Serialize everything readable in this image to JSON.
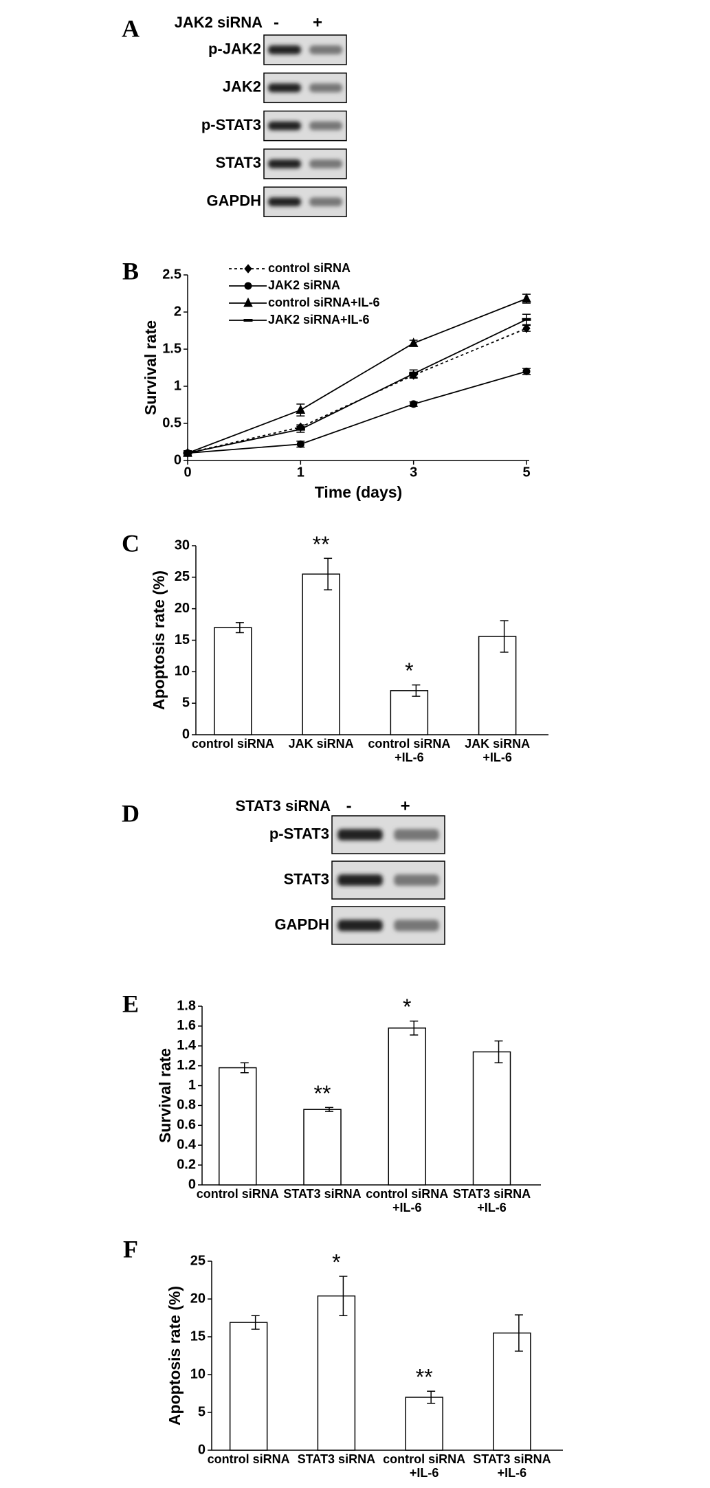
{
  "chart_data": [
    {
      "type": "blot",
      "panel": "A",
      "treatment": "JAK2 siRNA",
      "lanes": [
        "-",
        "+"
      ],
      "rows": [
        "p-JAK2",
        "JAK2",
        "p-STAT3",
        "STAT3",
        "GAPDH"
      ]
    },
    {
      "type": "line",
      "panel": "B",
      "xlabel": "Time (days)",
      "ylabel": "Survival rate",
      "categories": [
        "0",
        "1",
        "3",
        "5"
      ],
      "ylim": [
        0,
        2.5
      ],
      "yticks": [
        0,
        0.5,
        1,
        1.5,
        2,
        2.5
      ],
      "series": [
        {
          "name": "control siRNA",
          "color": "#000000",
          "linestyle": "dotted",
          "marker": "diamond",
          "values": [
            0.1,
            0.45,
            1.15,
            1.78
          ],
          "errors": [
            0.03,
            0.03,
            0.04,
            0.04
          ]
        },
        {
          "name": "JAK2 siRNA",
          "color": "#000000",
          "linestyle": "solid",
          "marker": "circle",
          "values": [
            0.1,
            0.22,
            0.76,
            1.2
          ],
          "errors": [
            0.03,
            0.04,
            0.03,
            0.04
          ]
        },
        {
          "name": "control siRNA+IL-6",
          "color": "#000000",
          "linestyle": "solid",
          "marker": "triangle",
          "values": [
            0.1,
            0.68,
            1.58,
            2.18
          ],
          "errors": [
            0.03,
            0.08,
            0.04,
            0.06
          ]
        },
        {
          "name": "JAK2 siRNA+IL-6",
          "color": "#000000",
          "linestyle": "solid",
          "marker": "dash",
          "values": [
            0.1,
            0.42,
            1.17,
            1.9
          ],
          "errors": [
            0.03,
            0.04,
            0.05,
            0.07
          ]
        }
      ]
    },
    {
      "type": "bar",
      "panel": "C",
      "ylabel": "Apoptosis rate (%)",
      "categories": [
        [
          "control siRNA"
        ],
        [
          "JAK siRNA"
        ],
        [
          "control siRNA",
          "+IL-6"
        ],
        [
          "JAK siRNA",
          "+IL-6"
        ]
      ],
      "values": [
        17,
        25.5,
        7,
        15.6
      ],
      "errors": [
        0.8,
        2.5,
        0.9,
        2.5
      ],
      "annotations": [
        null,
        "**",
        "*",
        null
      ],
      "ylim": [
        0,
        30
      ],
      "yticks": [
        0,
        5,
        10,
        15,
        20,
        25,
        30
      ],
      "color": "#ffffff"
    },
    {
      "type": "blot",
      "panel": "D",
      "treatment": "STAT3 siRNA",
      "lanes": [
        "-",
        "+"
      ],
      "rows": [
        "p-STAT3",
        "STAT3",
        "GAPDH"
      ]
    },
    {
      "type": "bar",
      "panel": "E",
      "ylabel": "Survival rate",
      "categories": [
        [
          "control siRNA"
        ],
        [
          "STAT3 siRNA"
        ],
        [
          "control siRNA",
          "+IL-6"
        ],
        [
          "STAT3 siRNA",
          "+IL-6"
        ]
      ],
      "values": [
        1.18,
        0.76,
        1.58,
        1.34
      ],
      "errors": [
        0.05,
        0.02,
        0.07,
        0.11
      ],
      "annotations": [
        null,
        "**",
        "*",
        null
      ],
      "ylim": [
        0,
        1.8
      ],
      "yticks": [
        0,
        0.2,
        0.4,
        0.6,
        0.8,
        1,
        1.2,
        1.4,
        1.6,
        1.8
      ],
      "color": "#ffffff"
    },
    {
      "type": "bar",
      "panel": "F",
      "ylabel": "Apoptosis rate (%)",
      "categories": [
        [
          "control siRNA"
        ],
        [
          "STAT3 siRNA"
        ],
        [
          "control siRNA",
          "+IL-6"
        ],
        [
          "STAT3 siRNA",
          "+IL-6"
        ]
      ],
      "values": [
        16.9,
        20.4,
        7,
        15.5
      ],
      "errors": [
        0.9,
        2.6,
        0.8,
        2.4
      ],
      "annotations": [
        null,
        "*",
        "**",
        null
      ],
      "ylim": [
        0,
        25
      ],
      "yticks": [
        0,
        5,
        10,
        15,
        20,
        25
      ],
      "color": "#ffffff"
    }
  ]
}
